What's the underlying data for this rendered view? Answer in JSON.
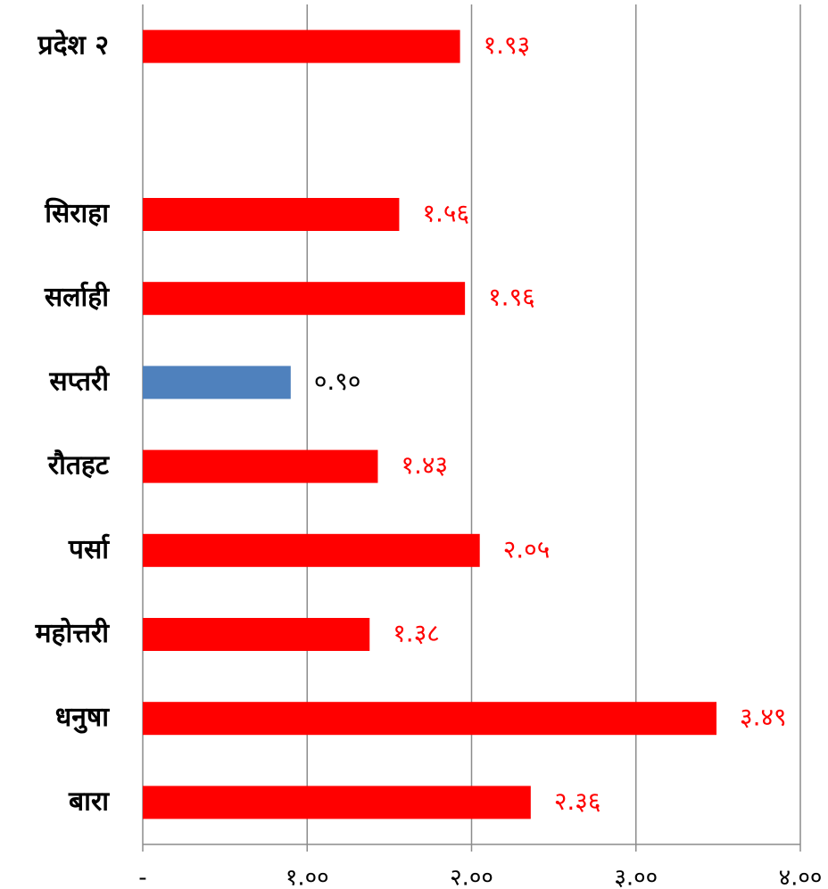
{
  "chart_data": {
    "type": "hbar",
    "categories": [
      "प्रदेश २",
      null,
      "सिराहा",
      "सर्लाही",
      "सप्तरी",
      "रौतहट",
      "पर्सा",
      "महोत्तरी",
      "धनुषा",
      "बारा"
    ],
    "values": [
      1.93,
      null,
      1.56,
      1.96,
      0.9,
      1.43,
      2.05,
      1.38,
      3.49,
      2.36
    ],
    "value_labels": [
      "१.९३",
      null,
      "१.५६",
      "१.९६",
      "०.९०",
      "१.४३",
      "२.०५",
      "१.३८",
      "३.४९",
      "२.३६"
    ],
    "colors": [
      "#ff0000",
      null,
      "#ff0000",
      "#ff0000",
      "#4f81bd",
      "#ff0000",
      "#ff0000",
      "#ff0000",
      "#ff0000",
      "#ff0000"
    ],
    "value_label_colors": [
      "#ff0000",
      null,
      "#ff0000",
      "#ff0000",
      "#000000",
      "#ff0000",
      "#ff0000",
      "#ff0000",
      "#ff0000",
      "#ff0000"
    ],
    "xlim": [
      0,
      4
    ],
    "xticks": [
      {
        "value": 0,
        "label": "-"
      },
      {
        "value": 1,
        "label": "१.००"
      },
      {
        "value": 2,
        "label": "२.००"
      },
      {
        "value": 3,
        "label": "३.००"
      },
      {
        "value": 4,
        "label": "४.००"
      }
    ],
    "grid": true
  }
}
